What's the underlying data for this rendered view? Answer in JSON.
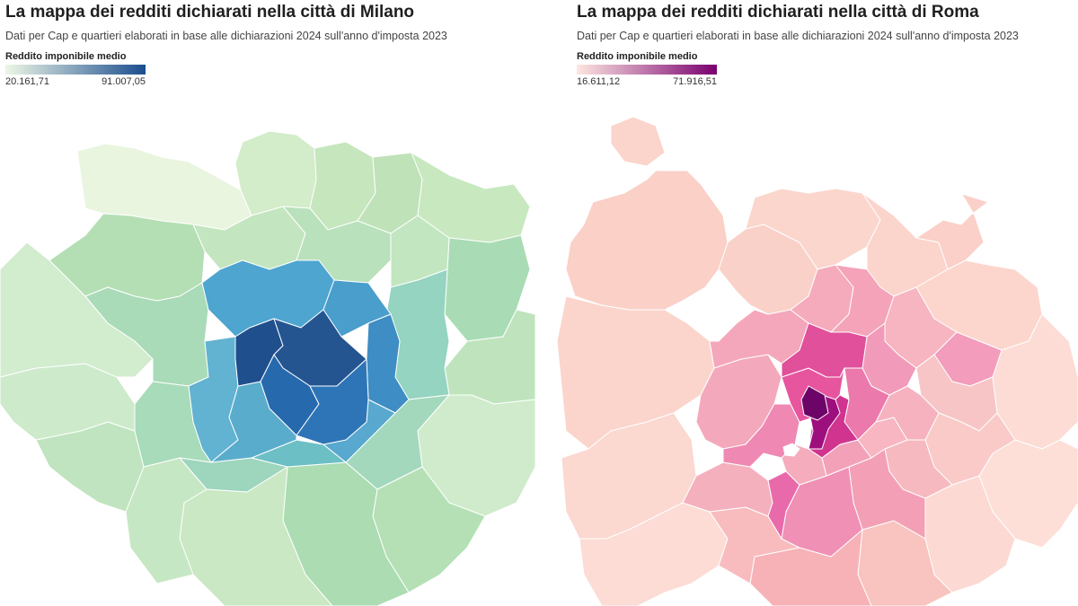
{
  "milano": {
    "title": "La mappa dei redditi dichiarati nella città di Milano",
    "subtitle": "Dati per Cap e quartieri elaborati in base alle dichiarazioni 2024 sull'anno d'imposta 2023",
    "legend": {
      "title": "Reddito imponibile medio",
      "min_label": "20.161,71",
      "max_label": "91.007,05",
      "min": 20161.71,
      "max": 91007.05,
      "color_low": "#eef7e6",
      "color_high": "#1b4d8f"
    }
  },
  "roma": {
    "title": "La mappa dei redditi dichiarati nella città di Roma",
    "subtitle": "Dati per Cap e quartieri elaborati in base alle dichiarazioni 2024 sull'anno d'imposta 2023",
    "legend": {
      "title": "Reddito imponibile medio",
      "min_label": "16.611,12",
      "max_label": "71.916,51",
      "min": 16611.12,
      "max": 71916.51,
      "color_low": "#fde7e1",
      "color_high": "#7a0070"
    }
  }
}
